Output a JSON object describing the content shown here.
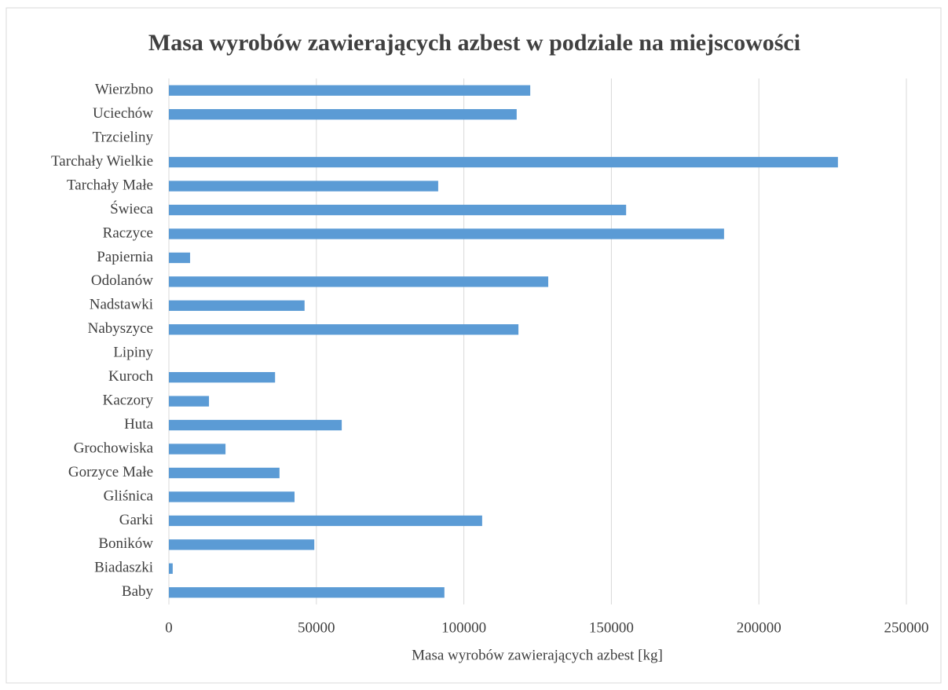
{
  "chart_data": {
    "type": "hbar",
    "title": "Masa wyrobów zawierających azbest w podziale na miejscowości",
    "x_label": "Masa wyrobów zawierających azbest [kg]",
    "categories": [
      "Baby",
      "Biadaszki",
      "Boników",
      "Garki",
      "Gliśnica",
      "Gorzyce Małe",
      "Grochowiska",
      "Huta",
      "Kaczory",
      "Kuroch",
      "Lipiny",
      "Nabyszyce",
      "Nadstawki",
      "Odolanów",
      "Papiernia",
      "Raczyce",
      "Świeca",
      "Tarchały Małe",
      "Tarchały Wielkie",
      "Trzcieliny",
      "Uciechów",
      "Wierzbno"
    ],
    "values": [
      93400,
      1300,
      49300,
      106200,
      42600,
      37500,
      19200,
      58600,
      13600,
      36000,
      0,
      118500,
      46000,
      128600,
      7200,
      188200,
      155000,
      91300,
      226800,
      0,
      117900,
      122500
    ],
    "color": "#5b9bd5",
    "xlim": [
      0,
      250000
    ],
    "xticks": [
      0,
      50000,
      100000,
      150000,
      200000,
      250000
    ],
    "grid": true
  }
}
